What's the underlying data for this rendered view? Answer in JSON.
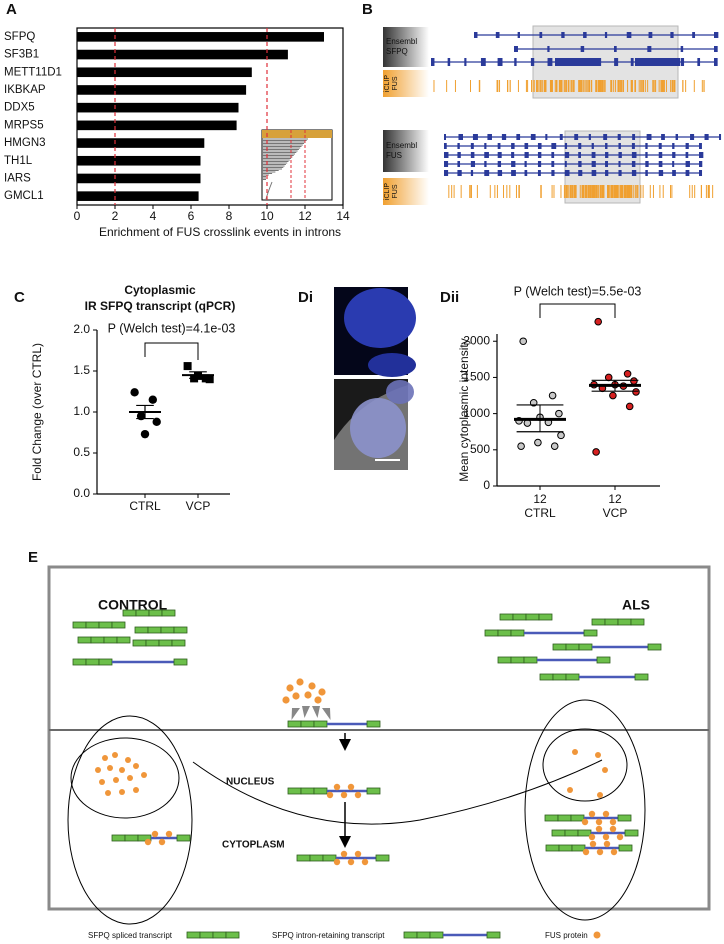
{
  "panel_labels": [
    "A",
    "B",
    "C",
    "Di",
    "Dii",
    "E"
  ],
  "chart_data": [
    {
      "type": "barh",
      "categories": [
        "SFPQ",
        "SF3B1",
        "METT11D1",
        "IKBKAP",
        "DDX5",
        "MRPS5",
        "HMGN3",
        "TH1L",
        "IARS",
        "GMCL1"
      ],
      "values": [
        13.0,
        11.1,
        9.2,
        8.9,
        8.5,
        8.4,
        6.7,
        6.5,
        6.5,
        6.4
      ],
      "color": "#000000",
      "xlim": [
        0,
        14
      ],
      "xticks": [
        0,
        2,
        4,
        6,
        8,
        10,
        12,
        14
      ],
      "xlabel": "Enrichment of FUS crosslink events in introns",
      "reference_lines": [
        2,
        10
      ],
      "reference_color": "#e0303a"
    },
    {
      "type": "dot",
      "title": "Cytoplasmic",
      "subtitle": "IR SFPQ transcript (qPCR)",
      "ylabel": "Fold Change (over CTRL)",
      "ylim": [
        0,
        2
      ],
      "yticks": [
        {
          "value": 0,
          "label": "0.0"
        },
        {
          "value": 0.5,
          "label": "0.5"
        },
        {
          "value": 1,
          "label": "1.0"
        },
        {
          "value": 1.5,
          "label": "1.5"
        },
        {
          "value": 2,
          "label": "2.0"
        }
      ],
      "categories": [
        "CTRL",
        "VCP"
      ],
      "groups": [
        {
          "values": [
            1.24,
            1.15,
            0.95,
            0.88,
            0.73
          ],
          "mean": 1.0,
          "error": 0.08,
          "marker": "circle",
          "color": "#000000"
        },
        {
          "values": [
            1.56,
            1.41,
            1.41,
            1.4,
            1.44
          ],
          "mean": 1.45,
          "error": 0.04,
          "marker": "square",
          "color": "#000000"
        }
      ],
      "annotation": "P (Welch test)=4.1e-03"
    },
    {
      "type": "dot",
      "ylabel": "Mean cytoplasmic intensity",
      "ylim": [
        0,
        2100
      ],
      "yticks": [
        0,
        500,
        1000,
        1500,
        2000
      ],
      "categories": [
        "CTRL",
        "VCP"
      ],
      "counts": [
        12,
        12
      ],
      "groups": [
        {
          "values": [
            2000,
            1250,
            1150,
            1000,
            950,
            900,
            880,
            870,
            700,
            600,
            550,
            550
          ],
          "mean": 920,
          "ci": [
            750,
            1120
          ],
          "marker": "circle",
          "color": "#c8c8c8"
        },
        {
          "values": [
            2270,
            1550,
            1500,
            1450,
            1400,
            1400,
            1380,
            1350,
            1300,
            1250,
            1100,
            470
          ],
          "mean": 1390,
          "ci": [
            1310,
            1460
          ],
          "marker": "circle",
          "color": "#d62020"
        }
      ],
      "annotation": "P (Welch test)=5.5e-03"
    }
  ],
  "panel_b": {
    "tracks": [
      {
        "source": "Ensembl",
        "gene": "SFPQ"
      },
      {
        "source": "iCLIP",
        "gene": "FUS"
      },
      {
        "source": "Ensembl",
        "gene": "FUS"
      },
      {
        "source": "iCLIP",
        "gene": "FUS"
      }
    ]
  },
  "diagram": {
    "left_title": "CONTROL",
    "right_title": "ALS",
    "nucleus": "NUCLEUS",
    "cytoplasm": "CYTOPLASM",
    "legend": [
      "SFPQ spliced transcript",
      "SFPQ intron-retaining transcript",
      "FUS protein"
    ]
  }
}
